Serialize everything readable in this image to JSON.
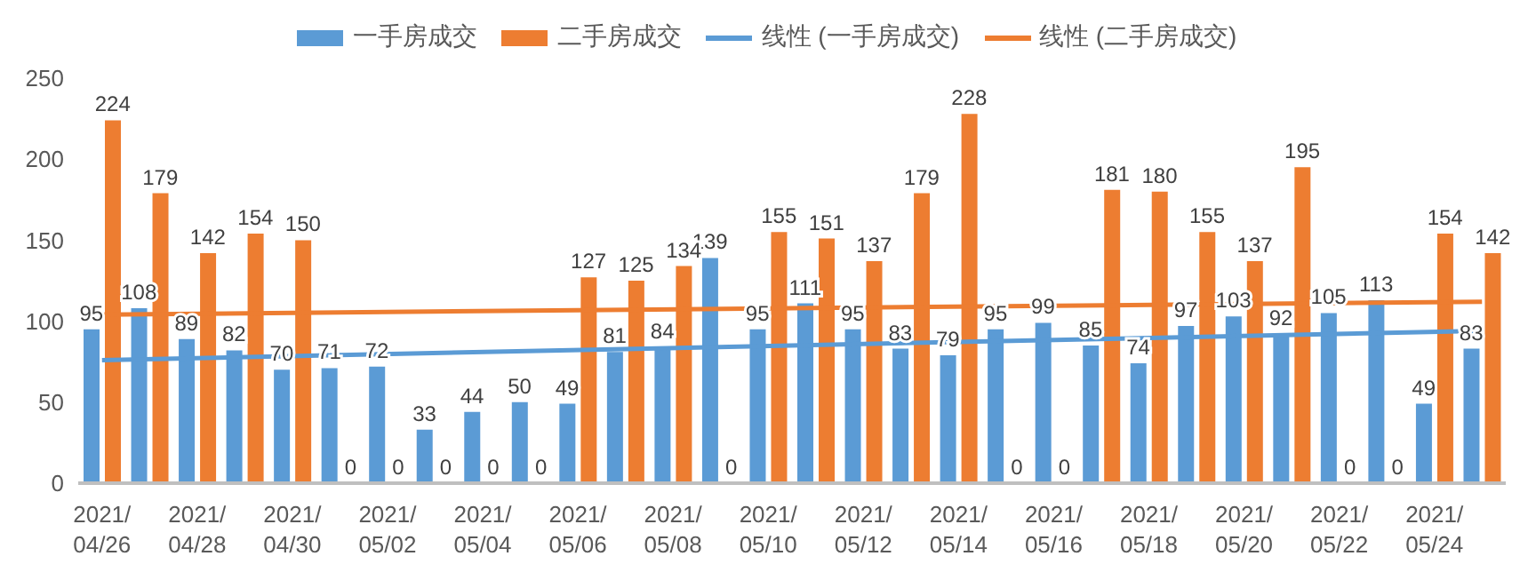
{
  "chart_data": {
    "type": "bar",
    "categories": [
      "2021/04/26",
      null,
      "2021/04/28",
      null,
      "2021/04/30",
      null,
      "2021/05/02",
      null,
      "2021/05/04",
      null,
      "2021/05/06",
      null,
      "2021/05/08",
      null,
      "2021/05/10",
      null,
      "2021/05/12",
      null,
      "2021/05/14",
      null,
      "2021/05/16",
      null,
      "2021/05/18",
      null,
      "2021/05/20",
      null,
      "2021/05/22",
      null,
      "2021/05/24",
      null
    ],
    "series": [
      {
        "name": "一手房成交",
        "color": "#5b9bd5",
        "values": [
          95,
          108,
          89,
          82,
          70,
          71,
          72,
          33,
          44,
          50,
          49,
          81,
          84,
          139,
          95,
          111,
          95,
          83,
          79,
          95,
          99,
          85,
          74,
          97,
          103,
          92,
          105,
          113,
          49,
          83
        ]
      },
      {
        "name": "二手房成交",
        "color": "#ed7d31",
        "values": [
          224,
          179,
          142,
          154,
          150,
          0,
          0,
          0,
          0,
          0,
          127,
          125,
          134,
          0,
          155,
          151,
          137,
          179,
          228,
          0,
          0,
          181,
          180,
          155,
          137,
          195,
          0,
          0,
          154,
          142
        ]
      },
      {
        "name": "线性 (一手房成交)",
        "type": "line",
        "color": "#5b9bd5",
        "data_labels": false,
        "values": [
          76,
          null,
          null,
          null,
          null,
          null,
          null,
          null,
          null,
          null,
          null,
          null,
          null,
          null,
          null,
          null,
          null,
          null,
          null,
          null,
          null,
          null,
          null,
          null,
          null,
          null,
          null,
          null,
          null,
          94
        ]
      },
      {
        "name": "线性 (二手房成交)",
        "type": "line",
        "color": "#ed7d31",
        "data_labels": false,
        "values": [
          104,
          null,
          null,
          null,
          null,
          null,
          null,
          null,
          null,
          null,
          null,
          null,
          null,
          null,
          null,
          null,
          null,
          null,
          null,
          null,
          null,
          null,
          null,
          null,
          null,
          null,
          null,
          null,
          null,
          112
        ]
      }
    ],
    "ylim": [
      0,
      250
    ],
    "yticks": [
      0,
      50,
      100,
      150,
      200,
      250
    ],
    "grid": false,
    "legend": "top",
    "data_labels": true,
    "marker": "none"
  }
}
